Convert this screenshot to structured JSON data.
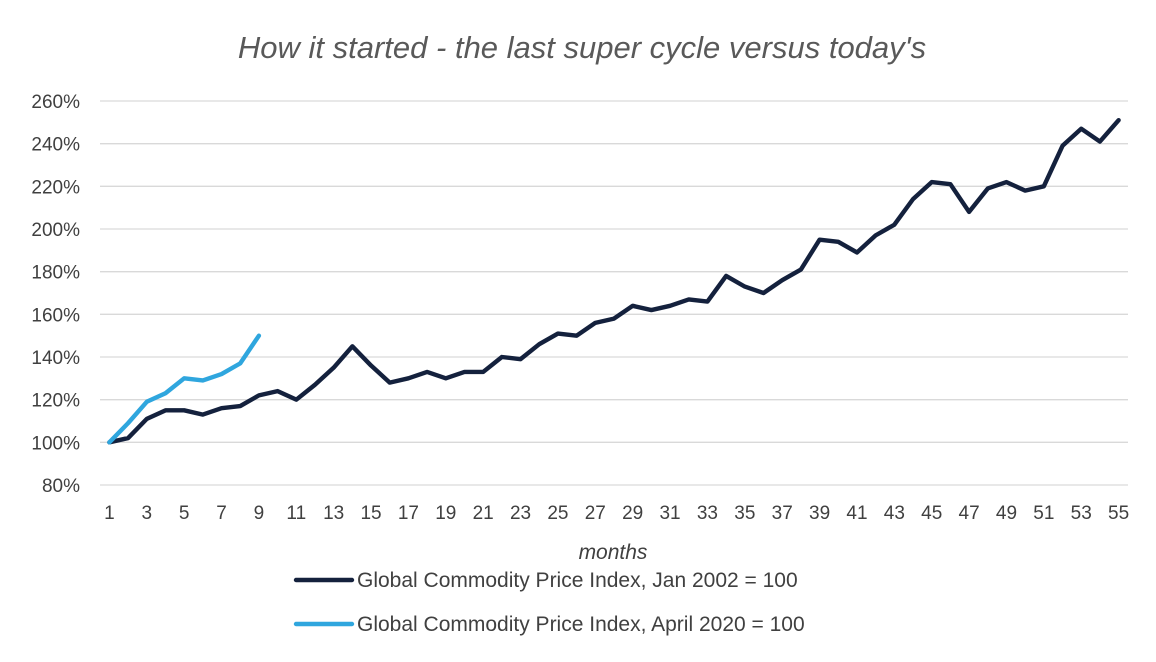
{
  "chart_data": {
    "type": "line",
    "title": "How it started - the last super cycle versus today's",
    "xlabel": "months",
    "ylabel": "",
    "x_ticks": [
      "1",
      "3",
      "5",
      "7",
      "9",
      "11",
      "13",
      "15",
      "17",
      "19",
      "21",
      "23",
      "25",
      "27",
      "29",
      "31",
      "33",
      "35",
      "37",
      "39",
      "41",
      "43",
      "45",
      "47",
      "49",
      "51",
      "53",
      "55"
    ],
    "y_ticks": [
      "80%",
      "100%",
      "120%",
      "140%",
      "160%",
      "180%",
      "200%",
      "220%",
      "240%",
      "260%"
    ],
    "xlim": [
      1,
      55
    ],
    "ylim": [
      80,
      260
    ],
    "grid": true,
    "legend_position": "bottom",
    "series": [
      {
        "name": "Global Commodity Price Index, Jan 2002 = 100",
        "color": "#14213d",
        "x": [
          1,
          2,
          3,
          4,
          5,
          6,
          7,
          8,
          9,
          10,
          11,
          12,
          13,
          14,
          15,
          16,
          17,
          18,
          19,
          20,
          21,
          22,
          23,
          24,
          25,
          26,
          27,
          28,
          29,
          30,
          31,
          32,
          33,
          34,
          35,
          36,
          37,
          38,
          39,
          40,
          41,
          42,
          43,
          44,
          45,
          46,
          47,
          48,
          49,
          50,
          51,
          52,
          53,
          54,
          55
        ],
        "values": [
          100,
          102,
          111,
          115,
          115,
          113,
          116,
          117,
          122,
          124,
          120,
          127,
          135,
          145,
          136,
          128,
          130,
          133,
          130,
          133,
          133,
          140,
          139,
          146,
          151,
          150,
          156,
          158,
          164,
          162,
          164,
          167,
          166,
          178,
          173,
          170,
          176,
          181,
          195,
          194,
          189,
          197,
          202,
          214,
          222,
          221,
          208,
          219,
          222,
          218,
          220,
          239,
          247,
          241,
          251
        ]
      },
      {
        "name": "Global Commodity Price Index, April 2020 = 100",
        "color": "#2fa6de",
        "x": [
          1,
          2,
          3,
          4,
          5,
          6,
          7,
          8,
          9
        ],
        "values": [
          100,
          109,
          119,
          123,
          130,
          129,
          132,
          137,
          150
        ]
      }
    ]
  }
}
